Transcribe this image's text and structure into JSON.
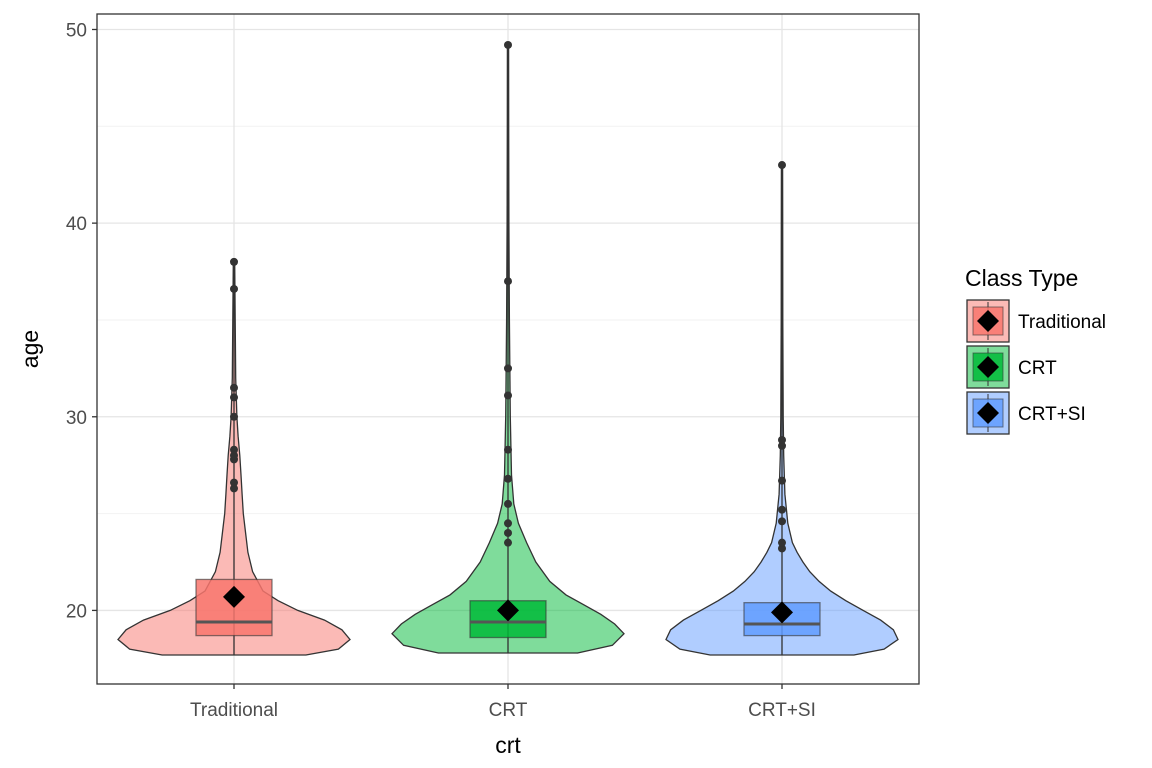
{
  "chart_data": {
    "type": "violin",
    "xlabel": "crt",
    "ylabel": "age",
    "categories": [
      "Traditional",
      "CRT",
      "CRT+SI"
    ],
    "ylim": [
      16.2,
      50.8
    ],
    "yticks": [
      20,
      30,
      40,
      50
    ],
    "grid": true,
    "legend": {
      "title": "Class Type",
      "placement": "right",
      "entries": [
        "Traditional",
        "CRT",
        "CRT+SI"
      ]
    },
    "series": [
      {
        "name": "Traditional",
        "color": "#F8766D",
        "min": 17.7,
        "q1": 18.7,
        "median": 19.4,
        "q3": 21.6,
        "max": 38.0,
        "mean": 20.7,
        "outliers": [
          26.3,
          26.6,
          27.8,
          28.0,
          28.3,
          30.0,
          31.0,
          31.5,
          36.6,
          38.0
        ],
        "density": [
          [
            17.7,
            0.62
          ],
          [
            18.0,
            0.9
          ],
          [
            18.5,
            1.0
          ],
          [
            19.0,
            0.93
          ],
          [
            19.5,
            0.78
          ],
          [
            20.0,
            0.55
          ],
          [
            20.5,
            0.38
          ],
          [
            21.0,
            0.25
          ],
          [
            22.0,
            0.16
          ],
          [
            23.0,
            0.12
          ],
          [
            24.0,
            0.1
          ],
          [
            25.0,
            0.08
          ],
          [
            26.0,
            0.07
          ],
          [
            27.0,
            0.06
          ],
          [
            28.0,
            0.05
          ],
          [
            29.0,
            0.035
          ],
          [
            30.0,
            0.025
          ],
          [
            32.0,
            0.015
          ],
          [
            35.0,
            0.01
          ],
          [
            38.0,
            0.006
          ]
        ]
      },
      {
        "name": "CRT",
        "color": "#00BA38",
        "min": 17.8,
        "q1": 18.6,
        "median": 19.4,
        "q3": 20.5,
        "max": 49.2,
        "mean": 20.0,
        "outliers": [
          23.5,
          24.0,
          24.5,
          25.5,
          26.8,
          28.3,
          31.1,
          32.5,
          37.0,
          49.2
        ],
        "density": [
          [
            17.8,
            0.6
          ],
          [
            18.2,
            0.9
          ],
          [
            18.8,
            1.0
          ],
          [
            19.3,
            0.92
          ],
          [
            19.8,
            0.8
          ],
          [
            20.3,
            0.65
          ],
          [
            20.8,
            0.5
          ],
          [
            21.5,
            0.36
          ],
          [
            22.5,
            0.24
          ],
          [
            23.5,
            0.16
          ],
          [
            24.5,
            0.09
          ],
          [
            25.5,
            0.05
          ],
          [
            27.0,
            0.03
          ],
          [
            30.0,
            0.02
          ],
          [
            35.0,
            0.012
          ],
          [
            40.0,
            0.008
          ],
          [
            45.0,
            0.006
          ],
          [
            49.2,
            0.005
          ]
        ]
      },
      {
        "name": "CRT+SI",
        "color": "#619CFF",
        "min": 17.7,
        "q1": 18.7,
        "median": 19.3,
        "q3": 20.4,
        "max": 43.0,
        "mean": 19.9,
        "outliers": [
          23.2,
          23.5,
          24.6,
          25.2,
          26.7,
          28.5,
          28.8,
          43.0
        ],
        "density": [
          [
            17.7,
            0.62
          ],
          [
            18.0,
            0.88
          ],
          [
            18.5,
            1.0
          ],
          [
            19.0,
            0.96
          ],
          [
            19.5,
            0.85
          ],
          [
            20.0,
            0.7
          ],
          [
            20.5,
            0.55
          ],
          [
            21.0,
            0.42
          ],
          [
            21.5,
            0.32
          ],
          [
            22.0,
            0.24
          ],
          [
            22.5,
            0.18
          ],
          [
            23.0,
            0.13
          ],
          [
            23.5,
            0.09
          ],
          [
            24.5,
            0.05
          ],
          [
            26.0,
            0.025
          ],
          [
            28.0,
            0.015
          ],
          [
            30.0,
            0.01
          ],
          [
            35.0,
            0.007
          ],
          [
            40.0,
            0.006
          ],
          [
            43.0,
            0.005
          ]
        ]
      }
    ]
  }
}
